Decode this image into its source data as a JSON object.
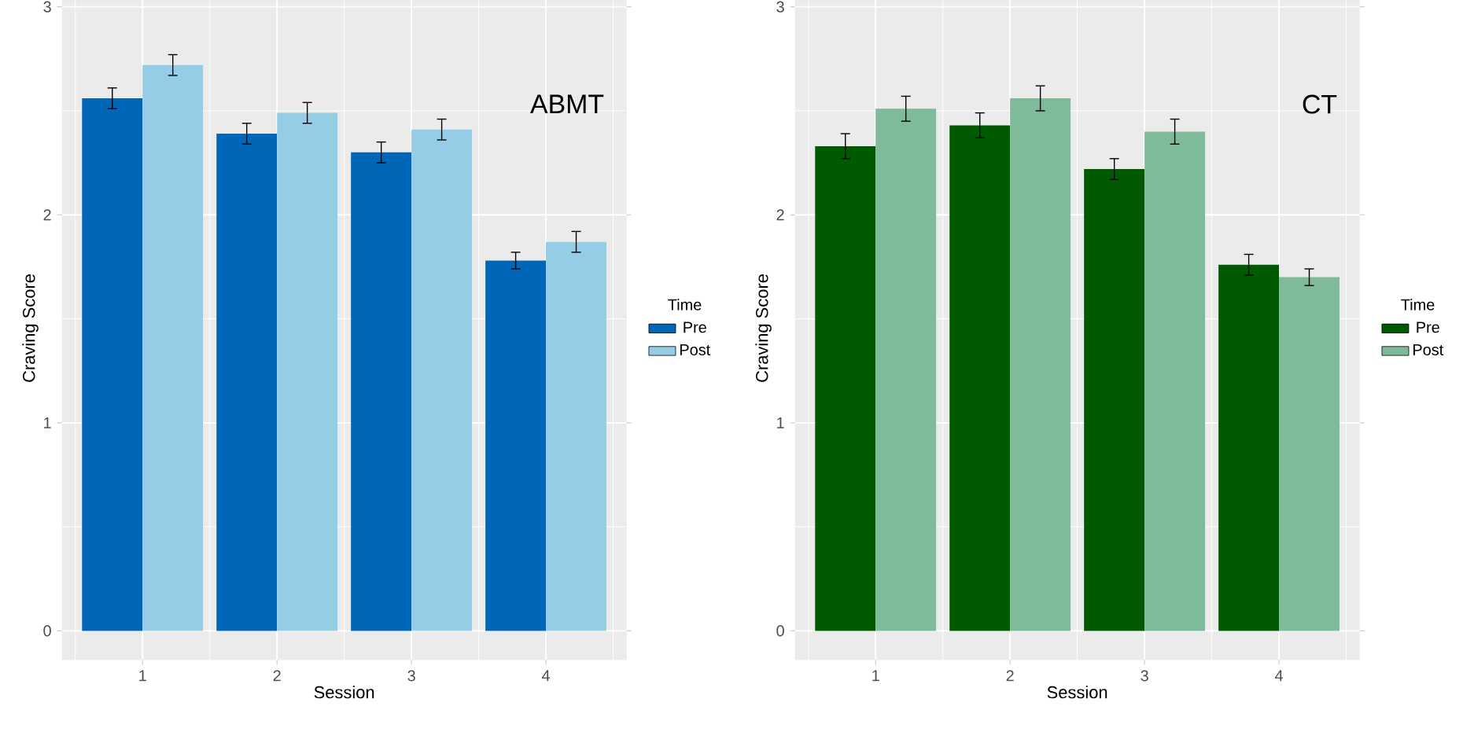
{
  "chart_data": [
    {
      "type": "bar",
      "categories": [
        "1",
        "2",
        "3",
        "4"
      ],
      "xlabel": "Session",
      "ylabel": "Craving Score",
      "ylim": [
        -0.14,
        3.05
      ],
      "yticks": [
        0,
        1,
        2,
        3
      ],
      "grid": true,
      "legend": "right",
      "legend_title": "Time",
      "annotations": [
        "ABMT"
      ],
      "series": [
        {
          "name": "Pre",
          "color": "#0066b8",
          "values": [
            2.56,
            2.39,
            2.3,
            1.78
          ],
          "errors": [
            0.05,
            0.05,
            0.05,
            0.04
          ]
        },
        {
          "name": "Post",
          "color": "#96cde6",
          "values": [
            2.72,
            2.49,
            2.41,
            1.87
          ],
          "errors": [
            0.05,
            0.05,
            0.05,
            0.05
          ]
        }
      ]
    },
    {
      "type": "bar",
      "categories": [
        "1",
        "2",
        "3",
        "4"
      ],
      "xlabel": "Session",
      "ylabel": "Craving Score",
      "ylim": [
        -0.14,
        3.05
      ],
      "yticks": [
        0,
        1,
        2,
        3
      ],
      "grid": true,
      "legend": "right",
      "legend_title": "Time",
      "annotations": [
        "CT"
      ],
      "series": [
        {
          "name": "Pre",
          "color": "#005a00",
          "values": [
            2.33,
            2.43,
            2.22,
            1.76
          ],
          "errors": [
            0.06,
            0.06,
            0.05,
            0.05
          ]
        },
        {
          "name": "Post",
          "color": "#7fba9a",
          "values": [
            2.51,
            2.56,
            2.4,
            1.7
          ],
          "errors": [
            0.06,
            0.06,
            0.06,
            0.04
          ]
        }
      ]
    }
  ]
}
